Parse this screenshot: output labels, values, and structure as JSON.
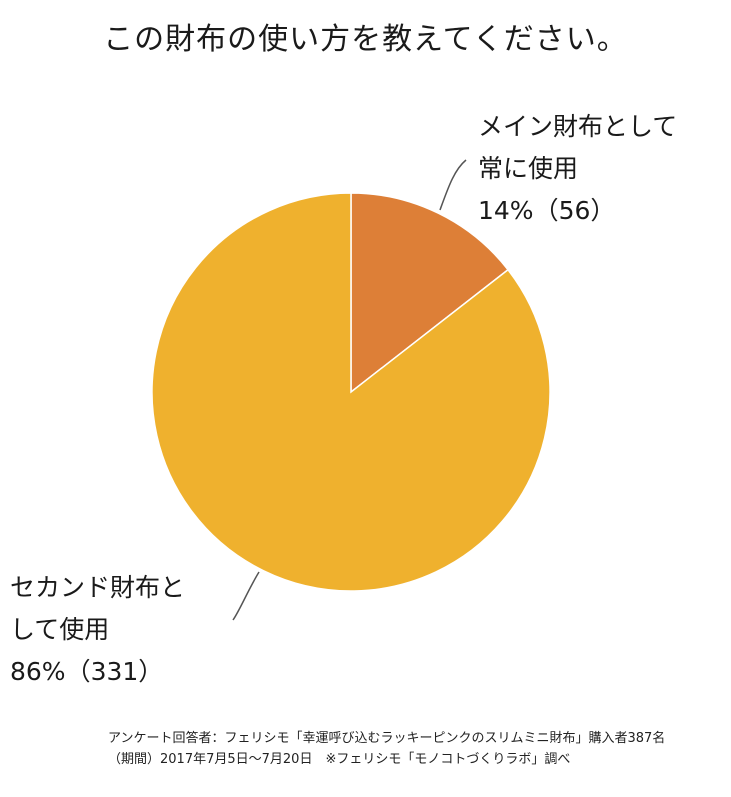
{
  "title": "この財布の使い方を教えてください。",
  "chart_data": {
    "type": "pie",
    "title": "この財布の使い方を教えてください。",
    "slices": [
      {
        "label_lines": [
          "メイン財布として",
          "常に使用"
        ],
        "percent": 14,
        "count": 56,
        "value_text": "14%（56）",
        "color": "#DD7F37"
      },
      {
        "label_lines": [
          "セカンド財布と",
          "して使用"
        ],
        "percent": 86,
        "count": 331,
        "value_text": "86%（331）",
        "color": "#EFB12E"
      }
    ]
  },
  "footer": {
    "line1": "アンケート回答者：フェリシモ「幸運呼び込むラッキーピンクのスリムミニ財布」購入者387名",
    "line2": "（期間）2017年7月5日～7月20日　※フェリシモ「モノコトづくりラボ」調べ"
  }
}
